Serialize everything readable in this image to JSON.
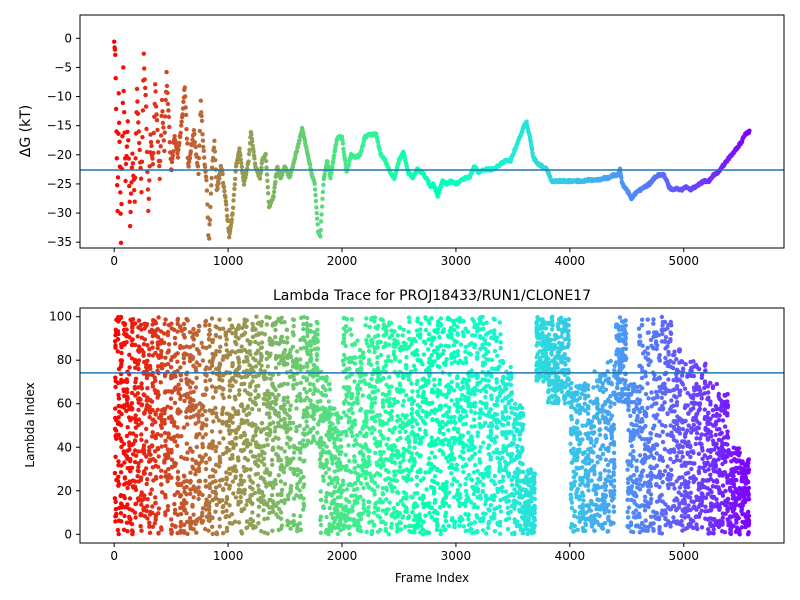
{
  "chart_data": [
    {
      "type": "scatter",
      "title": "",
      "xlabel": "",
      "ylabel": "ΔG (kT)",
      "xlim": [
        -300,
        5880
      ],
      "ylim": [
        -36,
        4
      ],
      "xticks": [
        0,
        1000,
        2000,
        3000,
        4000,
        5000
      ],
      "yticks": [
        0,
        -5,
        -10,
        -15,
        -20,
        -25,
        -30,
        -35
      ],
      "hline": -22.6,
      "hline_color": "#1f77b4",
      "colormap": "rainbow (red at frame 0 → violet at last frame)",
      "x_range": [
        0,
        5580
      ],
      "trace": [
        [
          0,
          0
        ],
        [
          10,
          -3
        ],
        [
          20,
          -16
        ],
        [
          30,
          -30
        ],
        [
          40,
          -10
        ],
        [
          50,
          -22
        ],
        [
          60,
          -35
        ],
        [
          80,
          -5
        ],
        [
          100,
          -24
        ],
        [
          120,
          -14
        ],
        [
          140,
          -32
        ],
        [
          160,
          -20
        ],
        [
          180,
          -28
        ],
        [
          200,
          -9
        ],
        [
          220,
          -18
        ],
        [
          240,
          -26
        ],
        [
          260,
          -3
        ],
        [
          280,
          -12
        ],
        [
          300,
          -30
        ],
        [
          320,
          -17
        ],
        [
          340,
          -22
        ],
        [
          360,
          -8
        ],
        [
          380,
          -16
        ],
        [
          400,
          -24
        ],
        [
          420,
          -11
        ],
        [
          440,
          -19
        ],
        [
          460,
          -6
        ],
        [
          480,
          -14
        ],
        [
          500,
          -23
        ],
        [
          530,
          -17
        ],
        [
          560,
          -20
        ],
        [
          600,
          -13
        ],
        [
          620,
          -8
        ],
        [
          650,
          -22
        ],
        [
          680,
          -18
        ],
        [
          700,
          -16
        ],
        [
          740,
          -23
        ],
        [
          760,
          -11
        ],
        [
          790,
          -21
        ],
        [
          810,
          -24
        ],
        [
          830,
          -36
        ],
        [
          860,
          -22
        ],
        [
          880,
          -18
        ],
        [
          900,
          -26
        ],
        [
          940,
          -22
        ],
        [
          980,
          -28
        ],
        [
          1010,
          -34
        ],
        [
          1040,
          -30
        ],
        [
          1070,
          -22
        ],
        [
          1100,
          -19
        ],
        [
          1140,
          -25
        ],
        [
          1180,
          -21
        ],
        [
          1200,
          -16
        ],
        [
          1240,
          -22
        ],
        [
          1280,
          -24
        ],
        [
          1300,
          -21
        ],
        [
          1330,
          -20
        ],
        [
          1360,
          -29
        ],
        [
          1400,
          -27
        ],
        [
          1430,
          -22
        ],
        [
          1460,
          -24
        ],
        [
          1500,
          -22
        ],
        [
          1540,
          -24
        ],
        [
          1580,
          -21
        ],
        [
          1620,
          -18
        ],
        [
          1650,
          -15.5
        ],
        [
          1700,
          -20
        ],
        [
          1730,
          -23
        ],
        [
          1760,
          -25
        ],
        [
          1790,
          -33
        ],
        [
          1810,
          -34
        ],
        [
          1840,
          -24
        ],
        [
          1870,
          -21
        ],
        [
          1900,
          -24
        ],
        [
          1930,
          -20
        ],
        [
          1960,
          -17
        ],
        [
          2000,
          -17
        ],
        [
          2040,
          -23
        ],
        [
          2080,
          -20
        ],
        [
          2110,
          -20.5
        ],
        [
          2160,
          -20
        ],
        [
          2200,
          -17
        ],
        [
          2250,
          -16.5
        ],
        [
          2300,
          -16.5
        ],
        [
          2340,
          -20
        ],
        [
          2380,
          -21
        ],
        [
          2420,
          -23
        ],
        [
          2460,
          -24
        ],
        [
          2500,
          -21
        ],
        [
          2540,
          -19.5
        ],
        [
          2580,
          -23
        ],
        [
          2620,
          -24
        ],
        [
          2660,
          -22.5
        ],
        [
          2700,
          -23
        ],
        [
          2740,
          -24
        ],
        [
          2780,
          -25.5
        ],
        [
          2800,
          -25
        ],
        [
          2840,
          -27
        ],
        [
          2880,
          -24.5
        ],
        [
          2920,
          -25
        ],
        [
          2960,
          -24.5
        ],
        [
          3000,
          -25
        ],
        [
          3040,
          -24.5
        ],
        [
          3080,
          -24
        ],
        [
          3120,
          -24
        ],
        [
          3160,
          -22
        ],
        [
          3200,
          -23
        ],
        [
          3240,
          -22.5
        ],
        [
          3280,
          -22.5
        ],
        [
          3320,
          -22.5
        ],
        [
          3360,
          -22
        ],
        [
          3400,
          -21.5
        ],
        [
          3440,
          -21
        ],
        [
          3480,
          -21
        ],
        [
          3520,
          -19
        ],
        [
          3560,
          -17
        ],
        [
          3600,
          -15
        ],
        [
          3620,
          -14.5
        ],
        [
          3650,
          -17
        ],
        [
          3680,
          -20.5
        ],
        [
          3720,
          -21.5
        ],
        [
          3760,
          -22
        ],
        [
          3800,
          -22.5
        ],
        [
          3840,
          -24.5
        ],
        [
          3900,
          -24.5
        ],
        [
          3960,
          -24.5
        ],
        [
          4000,
          -24.5
        ],
        [
          4060,
          -24.5
        ],
        [
          4120,
          -24.5
        ],
        [
          4180,
          -24.3
        ],
        [
          4240,
          -24.3
        ],
        [
          4300,
          -24
        ],
        [
          4340,
          -24
        ],
        [
          4380,
          -23.5
        ],
        [
          4420,
          -23.5
        ],
        [
          4440,
          -22.5
        ],
        [
          4460,
          -25
        ],
        [
          4500,
          -26
        ],
        [
          4540,
          -27.5
        ],
        [
          4580,
          -26.5
        ],
        [
          4620,
          -26
        ],
        [
          4660,
          -25.5
        ],
        [
          4700,
          -25
        ],
        [
          4740,
          -24
        ],
        [
          4780,
          -23.5
        ],
        [
          4820,
          -23.3
        ],
        [
          4840,
          -24
        ],
        [
          4870,
          -25.5
        ],
        [
          4900,
          -26
        ],
        [
          4940,
          -25.8
        ],
        [
          4980,
          -26
        ],
        [
          5020,
          -25.5
        ],
        [
          5060,
          -26
        ],
        [
          5100,
          -25.5
        ],
        [
          5140,
          -25
        ],
        [
          5180,
          -24.5
        ],
        [
          5220,
          -24.5
        ],
        [
          5260,
          -23.5
        ],
        [
          5300,
          -23
        ],
        [
          5340,
          -22
        ],
        [
          5380,
          -21
        ],
        [
          5420,
          -20
        ],
        [
          5460,
          -19
        ],
        [
          5500,
          -18
        ],
        [
          5540,
          -16.5
        ],
        [
          5580,
          -16
        ]
      ]
    },
    {
      "type": "scatter",
      "title": "Lambda Trace for PROJ18433/RUN1/CLONE17",
      "xlabel": "Frame Index",
      "ylabel": "Lambda Index",
      "xlim": [
        -300,
        5880
      ],
      "ylim": [
        -4,
        104
      ],
      "xticks": [
        0,
        1000,
        2000,
        3000,
        4000,
        5000
      ],
      "yticks": [
        0,
        20,
        40,
        60,
        80,
        100
      ],
      "hline": 74.2,
      "hline_color": "#1f77b4",
      "colormap": "rainbow (red at frame 0 → violet at last frame)",
      "x_range": [
        0,
        5580
      ],
      "sweep_blocks": [
        [
          0,
          0,
          100
        ],
        [
          100,
          0,
          100
        ],
        [
          200,
          0,
          100
        ],
        [
          300,
          0,
          100
        ],
        [
          400,
          0,
          100
        ],
        [
          520,
          0,
          100
        ],
        [
          600,
          0,
          100
        ],
        [
          680,
          0,
          100
        ],
        [
          760,
          0,
          100
        ],
        [
          880,
          0,
          100
        ],
        [
          1000,
          0,
          100
        ],
        [
          1080,
          0,
          100
        ],
        [
          1180,
          0,
          100
        ],
        [
          1280,
          0,
          100
        ],
        [
          1380,
          0,
          100
        ],
        [
          1480,
          0,
          100
        ],
        [
          1560,
          0,
          100
        ],
        [
          1680,
          40,
          100
        ],
        [
          1800,
          0,
          75
        ],
        [
          1900,
          0,
          60
        ],
        [
          2000,
          0,
          100
        ],
        [
          2100,
          0,
          90
        ],
        [
          2200,
          0,
          100
        ],
        [
          2300,
          0,
          100
        ],
        [
          2400,
          0,
          100
        ],
        [
          2500,
          0,
          100
        ],
        [
          2600,
          0,
          100
        ],
        [
          2700,
          0,
          100
        ],
        [
          2800,
          0,
          100
        ],
        [
          2900,
          0,
          100
        ],
        [
          3000,
          0,
          100
        ],
        [
          3100,
          0,
          100
        ],
        [
          3200,
          0,
          100
        ],
        [
          3300,
          0,
          100
        ],
        [
          3400,
          0,
          80
        ],
        [
          3500,
          0,
          60
        ],
        [
          3600,
          0,
          30
        ],
        [
          3700,
          70,
          100
        ],
        [
          3800,
          60,
          100
        ],
        [
          4000,
          0,
          70
        ],
        [
          4100,
          0,
          70
        ],
        [
          4200,
          0,
          75
        ],
        [
          4300,
          0,
          80
        ],
        [
          4400,
          60,
          100
        ],
        [
          4500,
          0,
          70
        ],
        [
          4600,
          0,
          100
        ],
        [
          4700,
          0,
          100
        ],
        [
          4800,
          0,
          100
        ],
        [
          4900,
          0,
          85
        ],
        [
          5000,
          0,
          80
        ],
        [
          5100,
          0,
          80
        ],
        [
          5200,
          0,
          70
        ],
        [
          5300,
          0,
          65
        ],
        [
          5400,
          0,
          40
        ],
        [
          5500,
          0,
          35
        ]
      ]
    }
  ]
}
